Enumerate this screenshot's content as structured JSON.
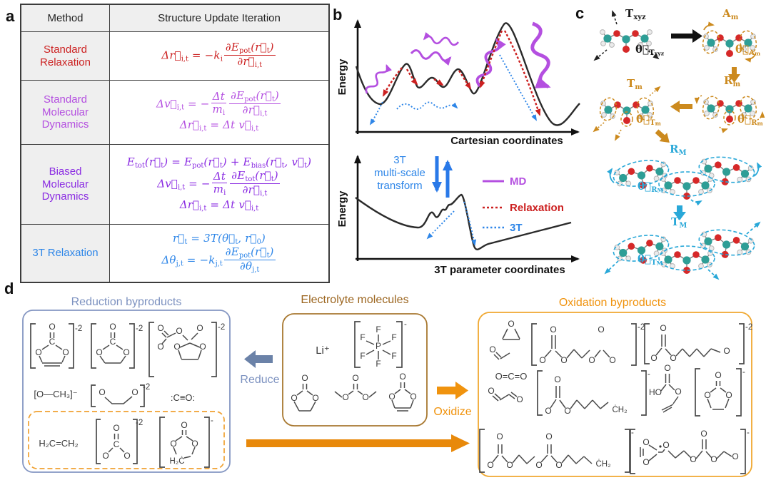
{
  "panels": {
    "a": "a",
    "b": "b",
    "c": "c",
    "d": "d"
  },
  "colors": {
    "relaxation_red": "#cc2222",
    "md_magenta": "#b44fe0",
    "biased_purple": "#8a2be2",
    "t3_blue": "#2e86e8",
    "panel_c_orange": "#cc8a1e",
    "panel_c_cyan": "#29a8d8",
    "reduction_blue": "#7d92c0",
    "reduce_arrow": "#6b82a8",
    "electrolyte_brown": "#9c6620",
    "oxidation_orange": "#f0930e",
    "long_arrow_orange": "#e8890b",
    "atom_carbon_teal": "#2e9e96",
    "atom_oxygen_red": "#d62828",
    "atom_hydrogen_white": "#ebebeb"
  },
  "table": {
    "headers": [
      "Method",
      "Structure Update Iteration"
    ],
    "rows": [
      {
        "method": "Standard Relaxation"
      },
      {
        "method": "Standard Molecular Dynamics"
      },
      {
        "method": "Biased Molecular Dynamics"
      },
      {
        "method": "3T Relaxation"
      }
    ]
  },
  "equations": {
    "relax": {
      "lines": [
        [
          {
            "s": [
              [
                "Δr⃗",
                0
              ],
              [
                "i,t",
                1
              ],
              [
                " = −k",
                0
              ],
              [
                "i",
                1
              ]
            ]
          },
          {
            "f": {
              "n": [
                [
                  "∂E",
                  0
                ],
                [
                  "pot",
                  1
                ],
                [
                  "(r⃗",
                  0
                ],
                [
                  "t",
                  1
                ],
                [
                  ")",
                  0
                ]
              ],
              "d": [
                [
                  "∂r⃗",
                  0
                ],
                [
                  "i,t",
                  1
                ]
              ]
            }
          }
        ]
      ]
    },
    "md": {
      "lines": [
        [
          {
            "s": [
              [
                "Δv⃗",
                0
              ],
              [
                "i,t",
                1
              ],
              [
                " = −",
                0
              ]
            ]
          },
          {
            "f": {
              "n": [
                [
                  "Δt",
                  0
                ]
              ],
              "d": [
                [
                  "m",
                  0
                ],
                [
                  "i",
                  1
                ]
              ]
            }
          },
          {
            "f": {
              "n": [
                [
                  "∂E",
                  0
                ],
                [
                  "pot",
                  1
                ],
                [
                  "(r⃗",
                  0
                ],
                [
                  "t",
                  1
                ],
                [
                  ")",
                  0
                ]
              ],
              "d": [
                [
                  "∂r⃗",
                  0
                ],
                [
                  "i,t",
                  1
                ]
              ]
            }
          }
        ],
        [
          {
            "s": [
              [
                "Δr⃗",
                0
              ],
              [
                "i,t",
                1
              ],
              [
                " = Δt v⃗",
                0
              ],
              [
                "i,t",
                1
              ]
            ]
          }
        ]
      ]
    },
    "biased": {
      "lines": [
        [
          {
            "s": [
              [
                "E",
                0
              ],
              [
                "tot",
                1
              ],
              [
                "(r⃗",
                0
              ],
              [
                "t",
                1
              ],
              [
                ") = E",
                0
              ],
              [
                "pot",
                1
              ],
              [
                "(r⃗",
                0
              ],
              [
                "t",
                1
              ],
              [
                ") + E",
                0
              ],
              [
                "bias",
                1
              ],
              [
                "(r⃗",
                0
              ],
              [
                "t",
                1
              ],
              [
                ", v⃗",
                0
              ],
              [
                "t",
                1
              ],
              [
                ")",
                0
              ]
            ]
          }
        ],
        [
          {
            "s": [
              [
                "Δv⃗",
                0
              ],
              [
                "i,t",
                1
              ],
              [
                " = −",
                0
              ]
            ]
          },
          {
            "f": {
              "n": [
                [
                  "Δt",
                  0
                ]
              ],
              "d": [
                [
                  "m",
                  0
                ],
                [
                  "i",
                  1
                ]
              ]
            }
          },
          {
            "f": {
              "n": [
                [
                  "∂E",
                  0
                ],
                [
                  "tot",
                  1
                ],
                [
                  "(r⃗",
                  0
                ],
                [
                  "t",
                  1
                ],
                [
                  ")",
                  0
                ]
              ],
              "d": [
                [
                  "∂r⃗",
                  0
                ],
                [
                  "i,t",
                  1
                ]
              ]
            }
          }
        ],
        [
          {
            "s": [
              [
                "Δr⃗",
                0
              ],
              [
                "i,t",
                1
              ],
              [
                " = Δt v⃗",
                0
              ],
              [
                "i,t",
                1
              ]
            ]
          }
        ]
      ]
    },
    "t3": {
      "lines": [
        [
          {
            "s": [
              [
                "r⃗",
                0
              ],
              [
                "t",
                1
              ],
              [
                " = 3T(θ⃗",
                0
              ],
              [
                "t",
                1
              ],
              [
                ", r⃗",
                0
              ],
              [
                "0",
                1
              ],
              [
                ")",
                0
              ]
            ]
          }
        ],
        [
          {
            "s": [
              [
                "Δθ",
                0
              ],
              [
                "j,t",
                1
              ],
              [
                " = −k",
                0
              ],
              [
                "j,t",
                1
              ]
            ]
          },
          {
            "f": {
              "n": [
                [
                  "∂E",
                  0
                ],
                [
                  "pot",
                  1
                ],
                [
                  "(r⃗",
                  0
                ],
                [
                  "t",
                  1
                ],
                [
                  ")",
                  0
                ]
              ],
              "d": [
                [
                  "∂θ",
                  0
                ],
                [
                  "j,t",
                  1
                ]
              ]
            }
          }
        ]
      ]
    }
  },
  "plot_top": {
    "ylabel": "Energy",
    "xlabel": "Cartesian coordinates"
  },
  "plot_bottom": {
    "ylabel": "Energy",
    "xlabel": "3T parameter coordinates",
    "transform_l1": "3T",
    "transform_l2": "multi-scale",
    "transform_l3": "transform"
  },
  "legend": {
    "md": "MD",
    "relaxation": "Relaxation",
    "t3": "3T"
  },
  "clabels": {
    "txyz": [
      {
        "s": [
          [
            "T",
            0
          ],
          [
            "xyz",
            1
          ]
        ]
      }
    ],
    "th_txyz": [
      {
        "s": [
          [
            "θ⃗",
            0
          ],
          [
            "T",
            1
          ],
          [
            "xyz",
            2
          ]
        ]
      }
    ],
    "am": [
      {
        "s": [
          [
            "A",
            0
          ],
          [
            "m",
            1
          ]
        ]
      }
    ],
    "th_am": [
      {
        "s": [
          [
            "θ⃗",
            0
          ],
          [
            "A",
            1
          ],
          [
            "m",
            2
          ]
        ]
      }
    ],
    "rm": [
      {
        "s": [
          [
            "R",
            0
          ],
          [
            "m",
            1
          ]
        ]
      }
    ],
    "th_rm": [
      {
        "s": [
          [
            "θ⃗",
            0
          ],
          [
            "R",
            1
          ],
          [
            "m",
            2
          ]
        ]
      }
    ],
    "tm": [
      {
        "s": [
          [
            "T",
            0
          ],
          [
            "m",
            1
          ]
        ]
      }
    ],
    "th_tm": [
      {
        "s": [
          [
            "θ⃗",
            0
          ],
          [
            "T",
            1
          ],
          [
            "m",
            2
          ]
        ]
      }
    ],
    "rM": [
      {
        "s": [
          [
            "R",
            0
          ],
          [
            "M",
            1
          ]
        ]
      }
    ],
    "th_rM": [
      {
        "s": [
          [
            "θ⃗",
            0
          ],
          [
            "R",
            1
          ],
          [
            "M",
            2
          ]
        ]
      }
    ],
    "tM": [
      {
        "s": [
          [
            "T",
            0
          ],
          [
            "M",
            1
          ]
        ]
      }
    ],
    "th_tM": [
      {
        "s": [
          [
            "θ⃗",
            0
          ],
          [
            "T",
            1
          ],
          [
            "M",
            2
          ]
        ]
      }
    ]
  },
  "d": {
    "reduction_title": "Reduction byproducts",
    "electrolyte_title": "Electrolyte molecules",
    "oxidation_title": "Oxidation byproducts",
    "reduce": "Reduce",
    "oxidize": "Oxidize",
    "texts": {
      "methoxide": "[O—CH₃]⁻",
      "carbon_monoxide": ":C≡O:",
      "ethylene": "H₂C=CH₂",
      "lithium": "Li⁺",
      "co2": "O=C=O",
      "ho": "HO",
      "ch2_radical": "ĊH₂"
    }
  },
  "sym": {
    "O": "O",
    "C": "C",
    "P": "P",
    "F": "F"
  },
  "charges": {
    "m2": "-2",
    "m1": "-"
  }
}
